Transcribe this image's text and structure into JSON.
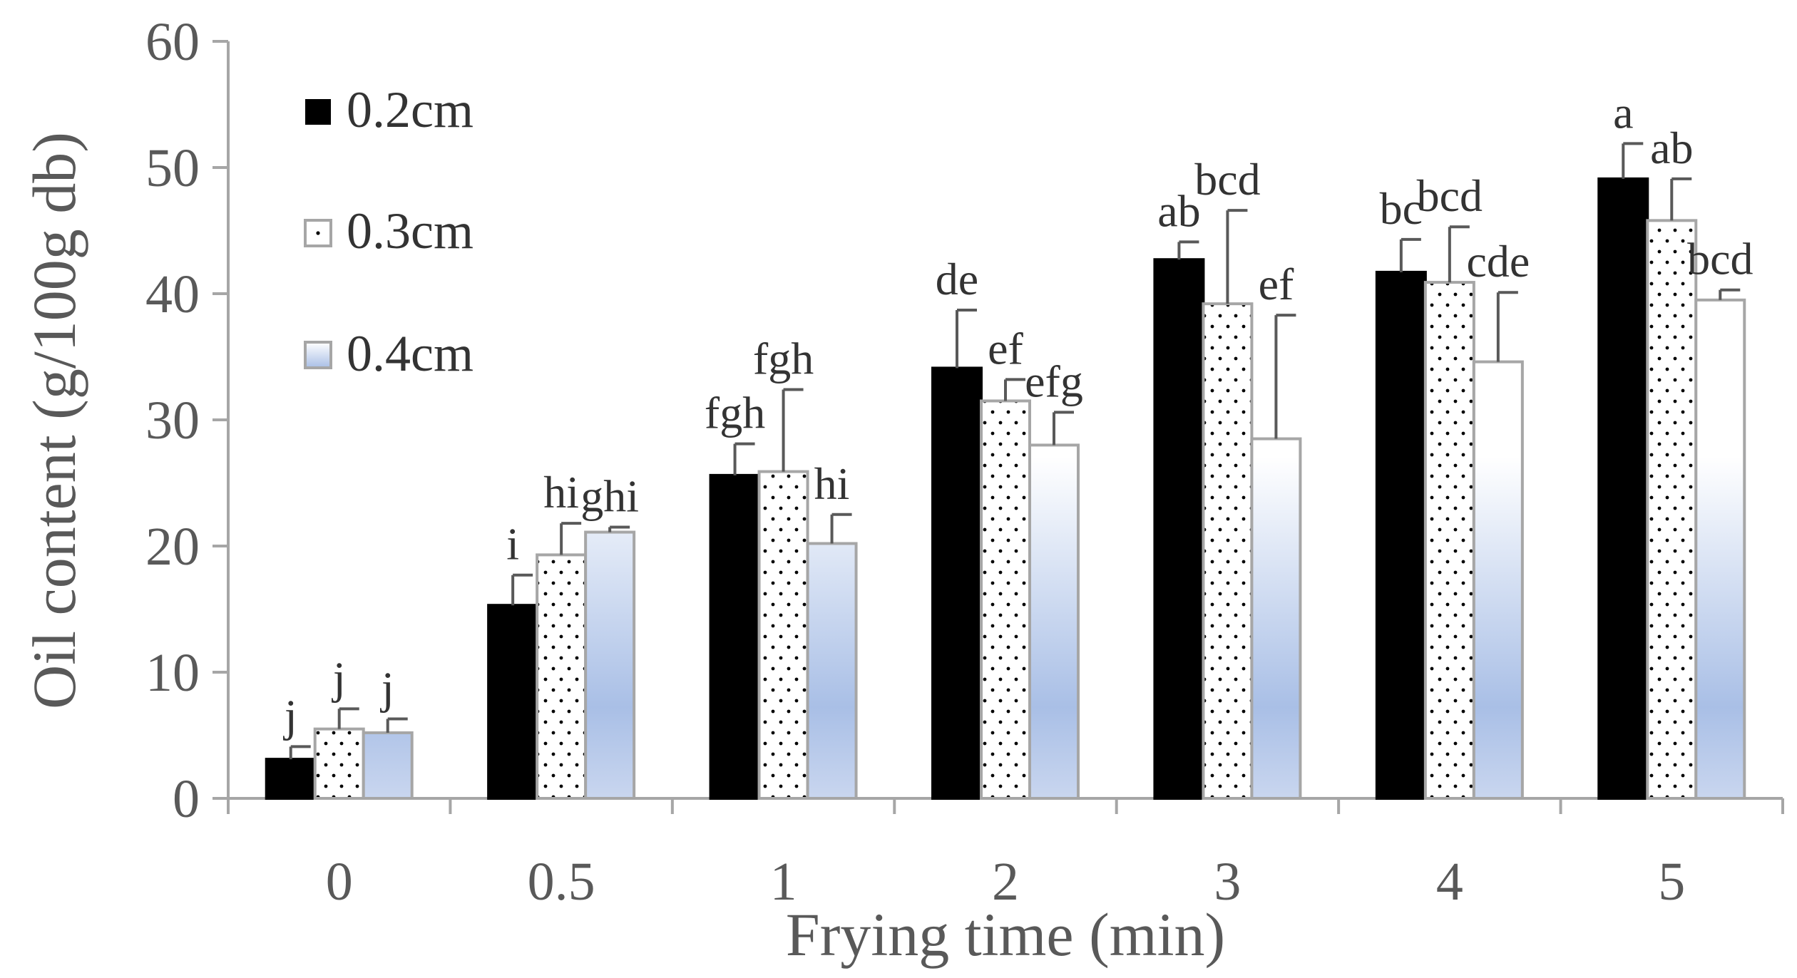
{
  "chart_data": {
    "type": "bar",
    "title": "",
    "xlabel": "Frying time (min)",
    "ylabel": "Oil content (g/100g db)",
    "ylim": [
      0,
      60
    ],
    "yticks": [
      "0",
      "10",
      "20",
      "30",
      "40",
      "50",
      "60"
    ],
    "categories": [
      "0",
      "0.5",
      "1",
      "2",
      "3",
      "4",
      "5"
    ],
    "legend_position": "top-left",
    "series": [
      {
        "name": "0.2cm",
        "style": "solid",
        "fill": "#000000",
        "values": [
          3.1,
          15.3,
          25.6,
          34.1,
          42.7,
          41.7,
          49.1
        ],
        "errors": [
          1.0,
          2.4,
          2.5,
          4.6,
          1.4,
          2.6,
          2.8
        ],
        "sig": [
          "j",
          "i",
          "fgh",
          "de",
          "ab",
          "bc",
          "a"
        ]
      },
      {
        "name": "0.3cm",
        "style": "dotted",
        "fill": "#ffffff",
        "values": [
          5.5,
          19.3,
          25.9,
          31.5,
          39.2,
          40.9,
          45.8
        ],
        "errors": [
          1.6,
          2.5,
          6.5,
          1.7,
          7.4,
          4.4,
          3.3
        ],
        "sig": [
          "j",
          "hi",
          "fgh",
          "ef",
          "bcd",
          "bcd",
          "ab"
        ]
      },
      {
        "name": "0.4cm",
        "style": "gradient",
        "fill": "#a9bfe6",
        "values": [
          5.2,
          21.1,
          20.2,
          28.0,
          28.5,
          34.6,
          39.5
        ],
        "errors": [
          1.1,
          0.4,
          2.3,
          2.6,
          9.8,
          5.5,
          0.8
        ],
        "sig": [
          "j",
          "ghi",
          "hi",
          "efg",
          "ef",
          "cde",
          "bcd"
        ]
      }
    ]
  }
}
